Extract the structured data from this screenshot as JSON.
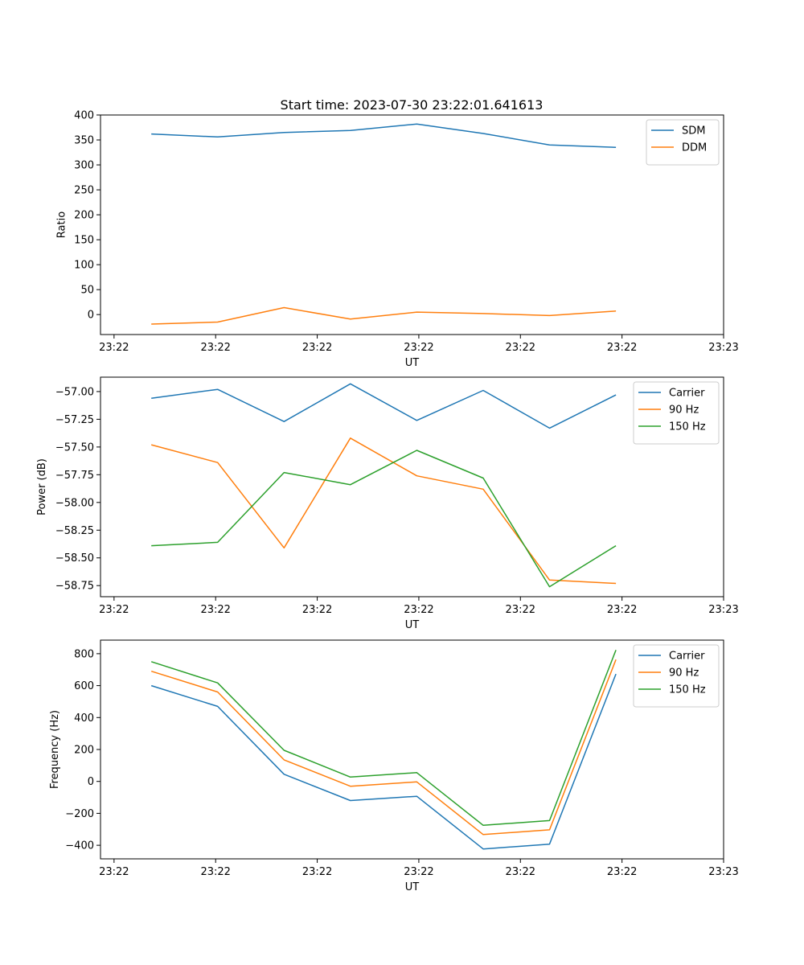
{
  "figure": {
    "title": "Start time: 2023-07-30 23:22:01.641613"
  },
  "chart_data": [
    {
      "type": "line",
      "title": "Start time: 2023-07-30 23:22:01.641613",
      "xlabel": "UT",
      "ylabel": "Ratio",
      "xlim": [
        0.0,
        9.2
      ],
      "ylim": [
        -40,
        400
      ],
      "grid": false,
      "legend_position": "top-right",
      "x": [
        0.75,
        1.73,
        2.71,
        3.69,
        4.67,
        5.65,
        6.63,
        7.61
      ],
      "x_ticks": [
        0.2,
        1.7,
        3.2,
        4.7,
        6.2,
        7.7,
        9.2
      ],
      "x_tick_labels": [
        "23:22",
        "23:22",
        "23:22",
        "23:22",
        "23:22",
        "23:22",
        "23:23"
      ],
      "y_ticks": [
        0,
        50,
        100,
        150,
        200,
        250,
        300,
        350,
        400
      ],
      "y_tick_labels": [
        "0",
        "50",
        "100",
        "150",
        "200",
        "250",
        "300",
        "350",
        "400"
      ],
      "series": [
        {
          "name": "SDM",
          "color": "#1f77b4",
          "values": [
            362,
            356,
            365,
            369,
            382,
            363,
            340,
            335
          ]
        },
        {
          "name": "DDM",
          "color": "#ff7f0e",
          "values": [
            -19,
            -15,
            14,
            -9,
            5,
            2,
            -2,
            7
          ]
        }
      ]
    },
    {
      "type": "line",
      "title": "",
      "xlabel": "UT",
      "ylabel": "Power (dB)",
      "xlim": [
        0.0,
        9.2
      ],
      "ylim": [
        -58.85,
        -56.87
      ],
      "grid": false,
      "legend_position": "top-right",
      "x": [
        0.75,
        1.73,
        2.71,
        3.69,
        4.67,
        5.65,
        6.63,
        7.61
      ],
      "x_ticks": [
        0.2,
        1.7,
        3.2,
        4.7,
        6.2,
        7.7,
        9.2
      ],
      "x_tick_labels": [
        "23:22",
        "23:22",
        "23:22",
        "23:22",
        "23:22",
        "23:22",
        "23:23"
      ],
      "y_ticks": [
        -58.75,
        -58.5,
        -58.25,
        -58.0,
        -57.75,
        -57.5,
        -57.25,
        -57.0
      ],
      "y_tick_labels": [
        "−58.75",
        "−58.50",
        "−58.25",
        "−58.00",
        "−57.75",
        "−57.50",
        "−57.25",
        "−57.00"
      ],
      "series": [
        {
          "name": "Carrier",
          "color": "#1f77b4",
          "values": [
            -57.06,
            -56.98,
            -57.27,
            -56.93,
            -57.26,
            -56.99,
            -57.33,
            -57.03
          ]
        },
        {
          "name": "90 Hz",
          "color": "#ff7f0e",
          "values": [
            -57.48,
            -57.64,
            -58.41,
            -57.42,
            -57.76,
            -57.88,
            -58.7,
            -58.73
          ]
        },
        {
          "name": "150 Hz",
          "color": "#2ca02c",
          "values": [
            -58.39,
            -58.36,
            -57.73,
            -57.84,
            -57.53,
            -57.78,
            -58.76,
            -58.39
          ]
        }
      ]
    },
    {
      "type": "line",
      "title": "",
      "xlabel": "UT",
      "ylabel": "Frequency (Hz)",
      "xlim": [
        0.0,
        9.2
      ],
      "ylim": [
        -485,
        885
      ],
      "grid": false,
      "legend_position": "top-right",
      "x": [
        0.75,
        1.73,
        2.71,
        3.69,
        4.67,
        5.65,
        6.63,
        7.61
      ],
      "x_ticks": [
        0.2,
        1.7,
        3.2,
        4.7,
        6.2,
        7.7,
        9.2
      ],
      "x_tick_labels": [
        "23:22",
        "23:22",
        "23:22",
        "23:22",
        "23:22",
        "23:22",
        "23:23"
      ],
      "y_ticks": [
        -400,
        -200,
        0,
        200,
        400,
        600,
        800
      ],
      "y_tick_labels": [
        "−400",
        "−200",
        "0",
        "200",
        "400",
        "600",
        "800"
      ],
      "series": [
        {
          "name": "Carrier",
          "color": "#1f77b4",
          "values": [
            600,
            470,
            45,
            -120,
            -93,
            -423,
            -393,
            673
          ]
        },
        {
          "name": "90 Hz",
          "color": "#ff7f0e",
          "values": [
            690,
            560,
            135,
            -30,
            -3,
            -333,
            -303,
            763
          ]
        },
        {
          "name": "150 Hz",
          "color": "#2ca02c",
          "values": [
            750,
            617,
            195,
            27,
            55,
            -275,
            -245,
            823
          ]
        }
      ]
    }
  ]
}
